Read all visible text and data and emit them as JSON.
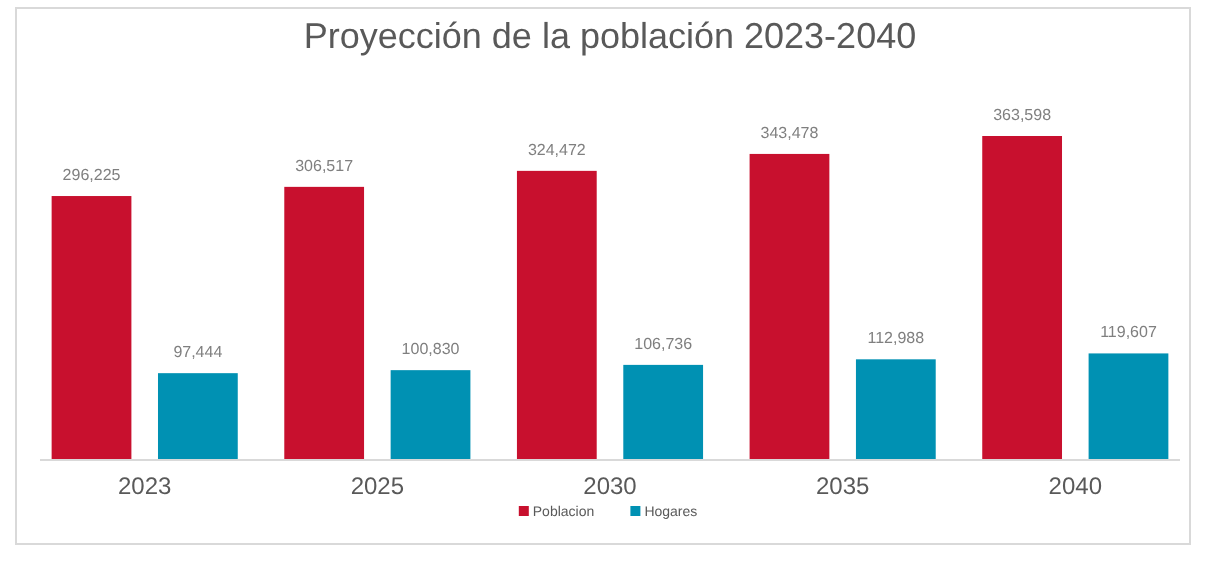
{
  "chart_data": {
    "type": "bar",
    "title": "Proyección de la población 2023-2040",
    "categories": [
      "2023",
      "2025",
      "2030",
      "2035",
      "2040"
    ],
    "series": [
      {
        "name": "Poblacion",
        "color": "#c8102e",
        "values": [
          296225,
          306517,
          324472,
          343478,
          363598
        ],
        "value_labels": [
          "296,225",
          "306,517",
          "324,472",
          "343,478",
          "363,598"
        ]
      },
      {
        "name": "Hogares",
        "color": "#0091b3",
        "values": [
          97444,
          100830,
          106736,
          112988,
          119607
        ],
        "value_labels": [
          "97,444",
          "100,830",
          "106,736",
          "112,988",
          "119,607"
        ]
      }
    ],
    "tick_labels": "x",
    "legend": "bottom"
  }
}
